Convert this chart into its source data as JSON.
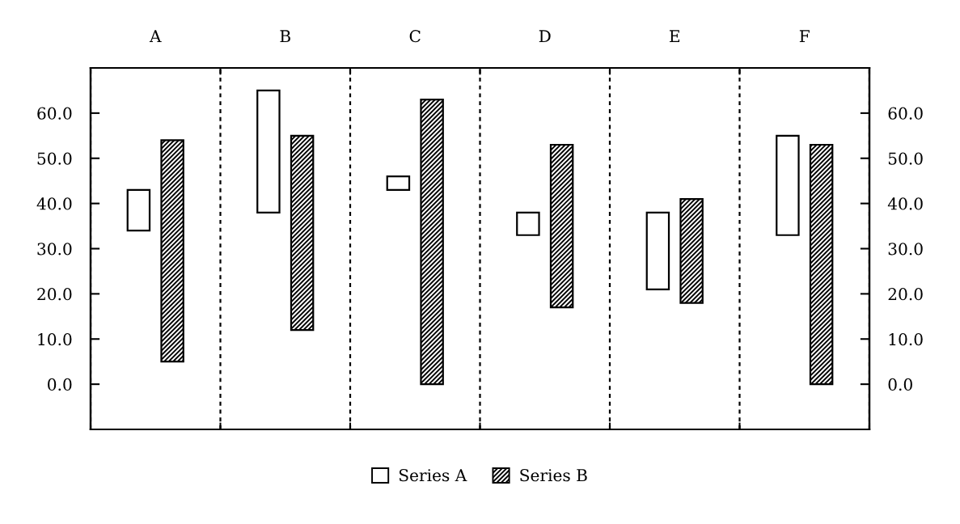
{
  "chart_data": {
    "type": "bar",
    "categories": [
      "A",
      "B",
      "C",
      "D",
      "E",
      "F"
    ],
    "series": [
      {
        "name": "Series A",
        "color": "#ffffff",
        "base": [
          34,
          38,
          43,
          33,
          21,
          33
        ],
        "values": [
          9,
          27,
          3,
          5,
          17,
          22
        ]
      },
      {
        "name": "Series B",
        "color": "#000000",
        "base": [
          5,
          12,
          0,
          17,
          18,
          0
        ],
        "values": [
          49,
          43,
          63,
          36,
          23,
          53
        ]
      }
    ],
    "ylim": [
      -10,
      70
    ],
    "yticks": [
      {
        "value": 0,
        "label": "0.0"
      },
      {
        "value": 10,
        "label": "10.0"
      },
      {
        "value": 20,
        "label": "20.0"
      },
      {
        "value": 30,
        "label": "30.0"
      },
      {
        "value": 40,
        "label": "40.0"
      },
      {
        "value": 50,
        "label": "50.0"
      },
      {
        "value": 60,
        "label": "60.0"
      }
    ],
    "y2lim": [
      -10,
      70
    ],
    "y2ticks": [
      {
        "value": 0,
        "label": "0.0"
      },
      {
        "value": 10,
        "label": "10.0"
      },
      {
        "value": 20,
        "label": "20.0"
      },
      {
        "value": 30,
        "label": "30.0"
      },
      {
        "value": 40,
        "label": "40.0"
      },
      {
        "value": 50,
        "label": "50.0"
      },
      {
        "value": 60,
        "label": "60.0"
      }
    ],
    "grid": "x",
    "legend": "bottom"
  }
}
